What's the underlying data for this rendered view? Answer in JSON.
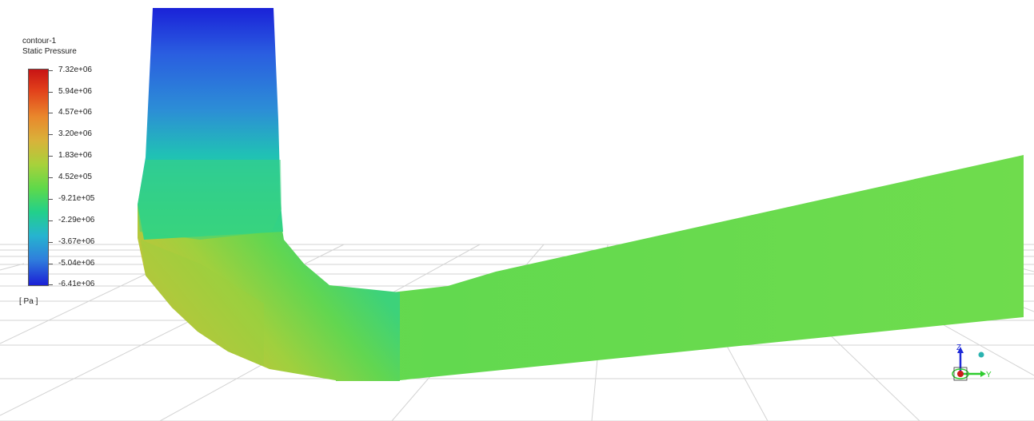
{
  "legend": {
    "title_line1": "contour-1",
    "title_line2": "Static Pressure",
    "ticks": [
      "7.32e+06",
      "5.94e+06",
      "4.57e+06",
      "3.20e+06",
      "1.83e+06",
      "4.52e+05",
      "-9.21e+05",
      "-2.29e+06",
      "-3.67e+06",
      "-5.04e+06",
      "-6.41e+06"
    ],
    "unit": "[ Pa ]",
    "colors": {
      "max": "#c81414",
      "high": "#e9882c",
      "mid_high": "#a8d13b",
      "mid": "#5fd94a",
      "mid_low": "#22d08a",
      "low": "#2f7fdc",
      "min": "#1b1fd6"
    }
  },
  "triad": {
    "z_label": "Z",
    "y_label": "Y",
    "z_color": "#1e2ad8",
    "y_color": "#2ecc2e",
    "x_color": "#cc1b1b"
  }
}
